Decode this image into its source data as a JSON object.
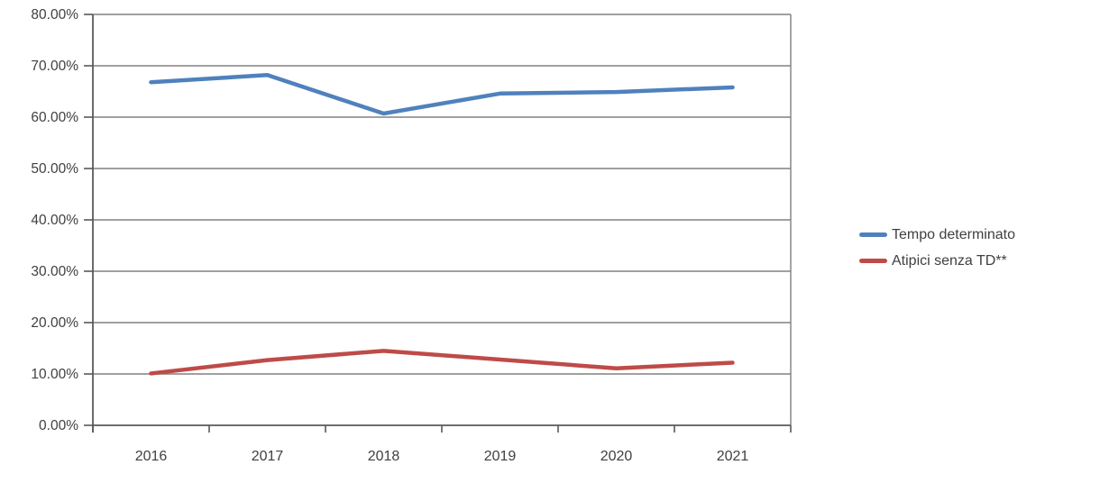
{
  "chart_data": {
    "type": "line",
    "title": "",
    "xlabel": "",
    "ylabel": "",
    "categories": [
      "2016",
      "2017",
      "2018",
      "2019",
      "2020",
      "2021"
    ],
    "series": [
      {
        "name": "Tempo determinato",
        "color": "#4F81BD",
        "values": [
          66.8,
          68.2,
          60.7,
          64.6,
          64.9,
          65.8
        ]
      },
      {
        "name": "Atipici senza TD**",
        "color": "#BE4B48",
        "values": [
          10.1,
          12.7,
          14.5,
          12.8,
          11.1,
          12.2
        ]
      }
    ],
    "ylim": [
      0,
      80
    ],
    "ytick_step": 10,
    "ytick_labels": [
      "0.00%",
      "10.00%",
      "20.00%",
      "30.00%",
      "40.00%",
      "50.00%",
      "60.00%",
      "70.00%",
      "80.00%"
    ],
    "grid": true,
    "legend_position": "right"
  },
  "colors": {
    "background": "#ffffff",
    "gridline": "#808080",
    "axis": "#595959",
    "plot_right_border": "#808080",
    "tick_text": "#404040",
    "legend_text": "#404040"
  }
}
